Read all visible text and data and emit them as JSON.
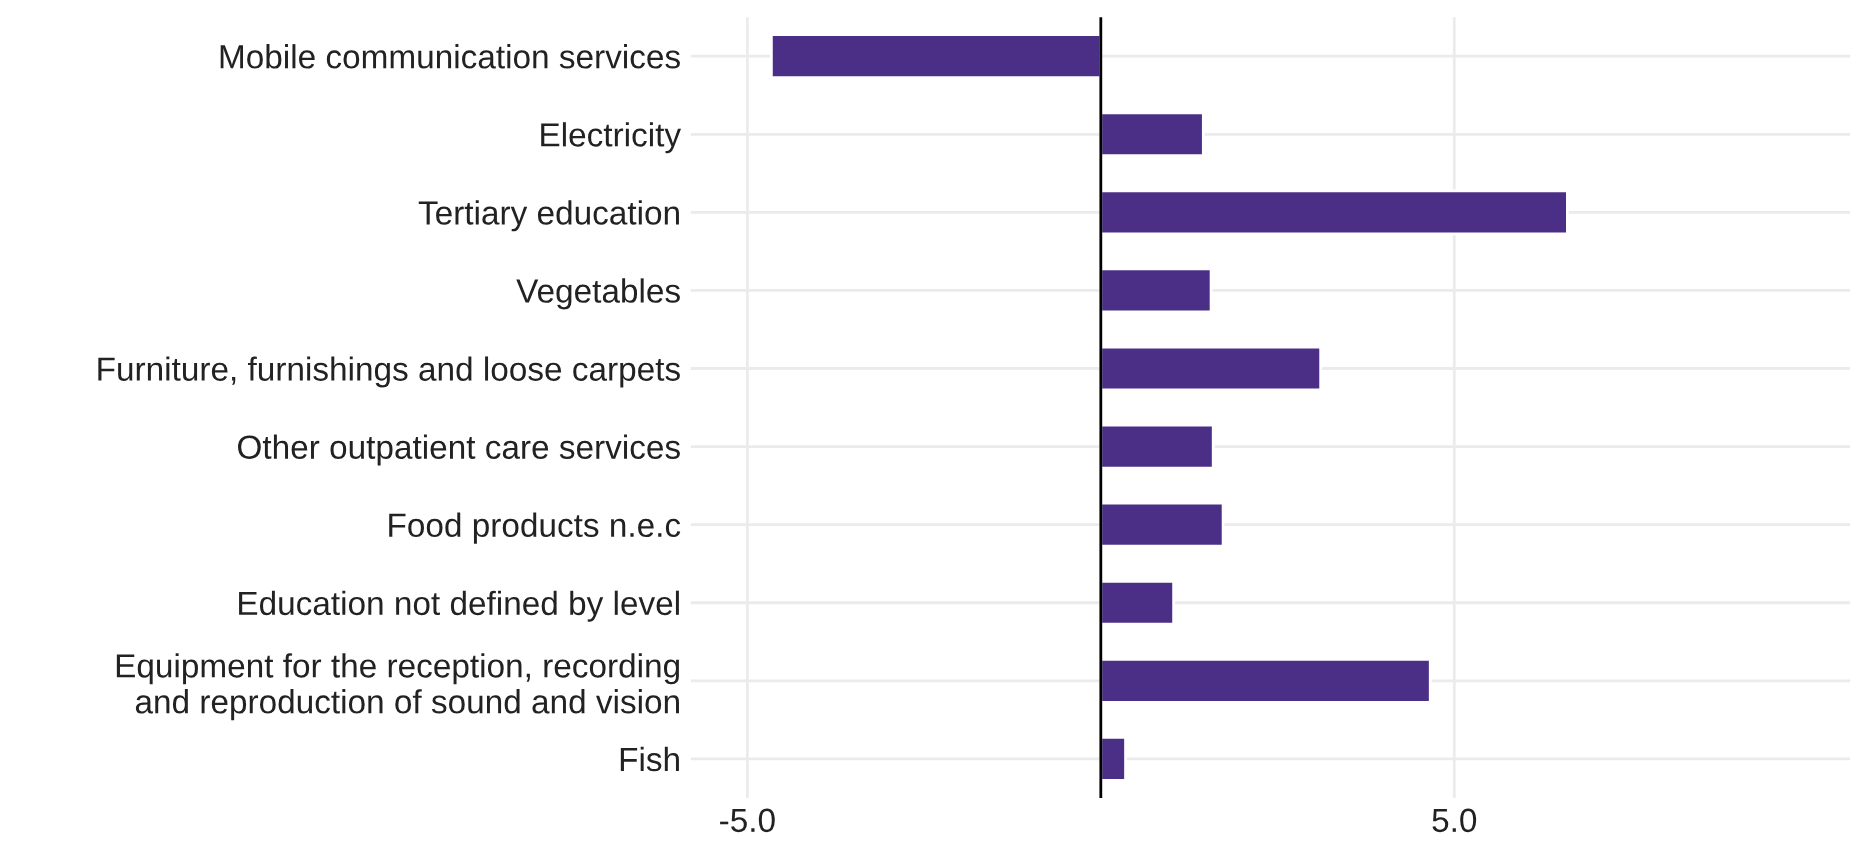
{
  "chart_data": {
    "type": "bar",
    "orientation": "horizontal",
    "categories": [
      "Mobile communication services",
      "Electricity",
      "Tertiary education",
      "Vegetables",
      "Furniture, furnishings and loose carpets",
      "Other outpatient care services",
      "Food products n.e.c",
      "Education not defined by level",
      "Equipment for the reception, recording\nand reproduction of sound and vision",
      "Fish"
    ],
    "values": [
      -4.66,
      1.45,
      6.6,
      1.56,
      3.11,
      1.59,
      1.73,
      1.03,
      4.66,
      0.35
    ],
    "color": "#4b2f86",
    "xlim": [
      -5.8,
      10.6
    ],
    "xticks": [
      {
        "value": -5,
        "label": "-5.0"
      },
      {
        "value": 5,
        "label": "5.0"
      }
    ],
    "ref_lines": [
      {
        "axis": "x",
        "value": 0,
        "color": "#000000"
      }
    ],
    "grid": true
  }
}
